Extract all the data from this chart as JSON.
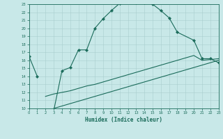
{
  "xlabel": "Humidex (Indice chaleur)",
  "bg_color": "#c8e8e8",
  "line_color": "#1a6b5a",
  "grid_color": "#a8cece",
  "xlim": [
    0,
    23
  ],
  "ylim": [
    10,
    23
  ],
  "yticks": [
    10,
    11,
    12,
    13,
    14,
    15,
    16,
    17,
    18,
    19,
    20,
    21,
    22,
    23
  ],
  "xticks": [
    0,
    1,
    2,
    3,
    4,
    5,
    6,
    7,
    8,
    9,
    10,
    11,
    12,
    13,
    14,
    15,
    16,
    17,
    18,
    19,
    20,
    21,
    22,
    23
  ],
  "curve1": {
    "segments": [
      {
        "x": [
          0,
          1
        ],
        "y": [
          16.5,
          14.0
        ]
      },
      {
        "x": [
          3,
          4,
          5,
          6,
          7,
          8,
          9,
          10,
          11,
          12,
          13,
          14,
          15,
          16,
          17,
          18,
          20,
          21,
          22,
          23
        ],
        "y": [
          9.7,
          14.7,
          15.1,
          17.3,
          17.3,
          20.0,
          21.2,
          22.2,
          23.1,
          23.3,
          23.2,
          23.2,
          23.0,
          22.2,
          21.3,
          19.5,
          18.5,
          16.2,
          16.2,
          15.7
        ]
      }
    ]
  },
  "curve2": {
    "x": [
      2,
      3,
      4,
      5,
      6,
      7,
      8,
      9,
      10,
      11,
      12,
      13,
      14,
      15,
      16,
      17,
      18,
      19,
      20,
      21,
      22,
      23
    ],
    "y": [
      11.5,
      11.8,
      12.0,
      12.2,
      12.5,
      12.8,
      13.0,
      13.3,
      13.6,
      13.9,
      14.2,
      14.5,
      14.8,
      15.1,
      15.4,
      15.7,
      16.0,
      16.3,
      16.6,
      16.0,
      16.1,
      16.2
    ]
  },
  "curve3": {
    "x": [
      3,
      4,
      5,
      6,
      7,
      8,
      9,
      10,
      11,
      12,
      13,
      14,
      15,
      16,
      17,
      18,
      19,
      20,
      21,
      22,
      23
    ],
    "y": [
      10.0,
      10.3,
      10.6,
      10.9,
      11.2,
      11.5,
      11.8,
      12.1,
      12.4,
      12.7,
      13.0,
      13.3,
      13.6,
      13.9,
      14.2,
      14.5,
      14.8,
      15.1,
      15.4,
      15.7,
      16.0
    ]
  }
}
